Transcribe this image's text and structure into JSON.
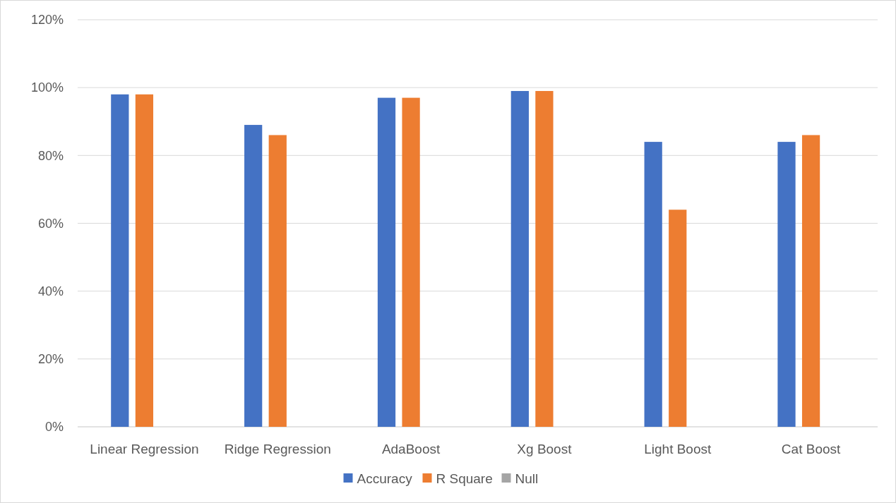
{
  "chart_data": {
    "type": "bar",
    "categories": [
      "Linear Regression",
      "Ridge Regression",
      "AdaBoost",
      "Xg Boost",
      "Light Boost",
      "Cat Boost"
    ],
    "series": [
      {
        "name": "Accuracy",
        "color": "#4472c4",
        "values": [
          98,
          89,
          97,
          99,
          84,
          84
        ]
      },
      {
        "name": "R Square",
        "color": "#ed7d31",
        "values": [
          98,
          86,
          97,
          99,
          64,
          86
        ]
      },
      {
        "name": "Null",
        "color": "#a5a5a5",
        "values": [
          null,
          null,
          null,
          null,
          null,
          null
        ]
      }
    ],
    "ylim": [
      0,
      120
    ],
    "yticks": [
      {
        "value": 0,
        "label": "0%"
      },
      {
        "value": 20,
        "label": "20%"
      },
      {
        "value": 40,
        "label": "40%"
      },
      {
        "value": 60,
        "label": "60%"
      },
      {
        "value": 80,
        "label": "80%"
      },
      {
        "value": 100,
        "label": "100%"
      },
      {
        "value": 120,
        "label": "120%"
      }
    ],
    "grid": "y",
    "legend": "bottom"
  }
}
